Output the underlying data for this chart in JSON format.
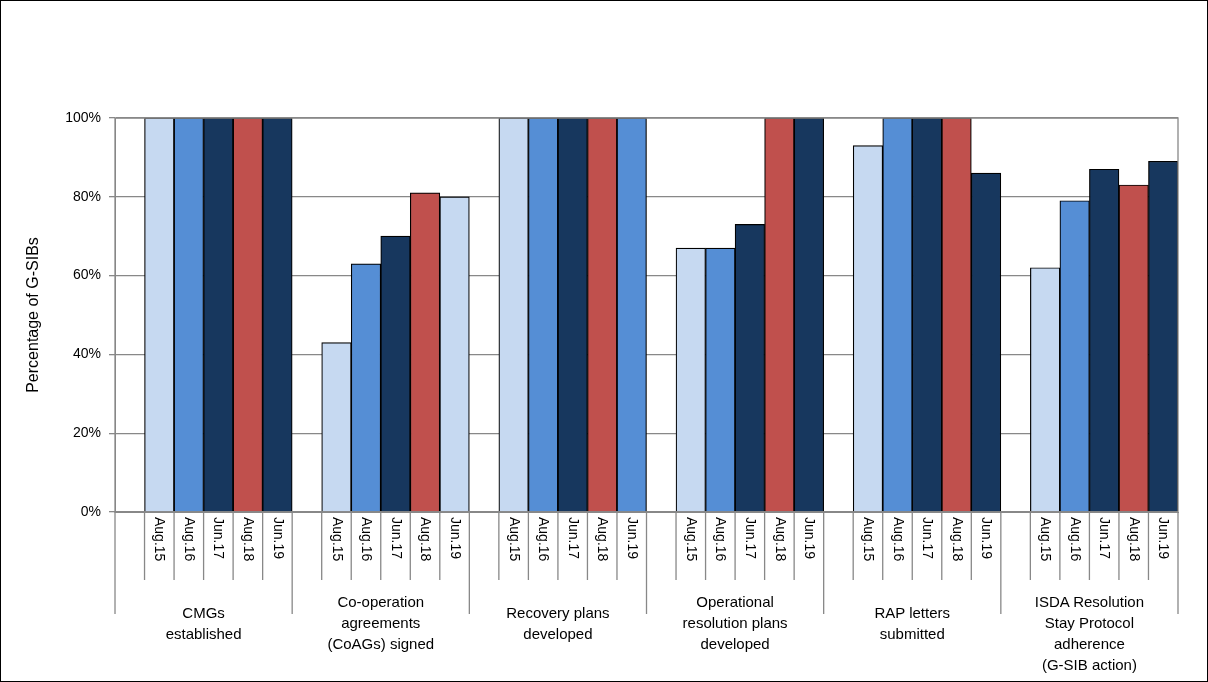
{
  "chart_data": {
    "type": "bar",
    "ylabel": "Percentage of G-SIBs",
    "categories": [
      null,
      "Aug.15",
      "Aug.16",
      "Jun.17",
      "Aug.18",
      "Jun.19",
      null,
      "Aug.15",
      "Aug.16",
      "Jun.17",
      "Aug.18",
      "Jun.19",
      null,
      "Aug.15",
      "Aug.16",
      "Jun.17",
      "Aug.18",
      "Jun.19",
      null,
      "Aug.15",
      "Aug.16",
      "Jun.17",
      "Aug.18",
      "Jun.19",
      null,
      "Aug.15",
      "Aug.16",
      "Jun.17",
      "Aug.18",
      "Jun.19",
      null,
      "Aug.15",
      "Aug.16",
      "Jun.17",
      "Aug.18",
      "Jun.19"
    ],
    "values": [
      null,
      100,
      100,
      100,
      100,
      100,
      null,
      43,
      63,
      70,
      81,
      80,
      null,
      100,
      100,
      100,
      100,
      100,
      null,
      67,
      67,
      73,
      100,
      100,
      null,
      93,
      100,
      100,
      100,
      86,
      null,
      62,
      79,
      87,
      83,
      89
    ],
    "colors": [
      null,
      "#c6d9f1",
      "#558ed5",
      "#17375e",
      "#c0504d",
      "#17375e",
      null,
      "#c6d9f1",
      "#558ed5",
      "#17375e",
      "#c0504d",
      "#c6d9f1",
      null,
      "#c6d9f1",
      "#558ed5",
      "#17375e",
      "#c0504d",
      "#558ed5",
      null,
      "#c6d9f1",
      "#558ed5",
      "#17375e",
      "#c0504d",
      "#17375e",
      null,
      "#c6d9f1",
      "#558ed5",
      "#17375e",
      "#c0504d",
      "#17375e",
      null,
      "#c6d9f1",
      "#558ed5",
      "#17375e",
      "#c0504d",
      "#17375e"
    ],
    "ylim": [
      0,
      100
    ],
    "yticks": [
      {
        "value": 0,
        "label": "0%"
      },
      {
        "value": 20,
        "label": "20%"
      },
      {
        "value": 40,
        "label": "40%"
      },
      {
        "value": 60,
        "label": "60%"
      },
      {
        "value": 80,
        "label": "80%"
      },
      {
        "value": 100,
        "label": "100%"
      }
    ],
    "grid": "y",
    "legend": false,
    "annotations": [
      "CMGs established",
      "Co-operation agreements (CoAGs) signed",
      "Recovery plans developed",
      "Operational resolution plans developed",
      "RAP letters submitted",
      "ISDA Resolution Stay Protocol adherence (G-SIB action)"
    ]
  }
}
